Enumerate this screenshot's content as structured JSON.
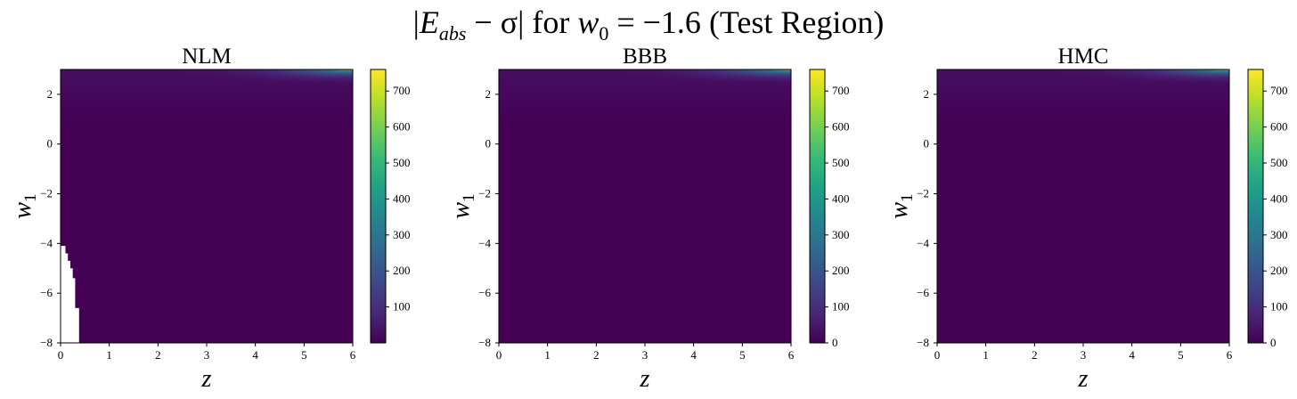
{
  "suptitle": {
    "bar_left": "|",
    "E": "E",
    "sub": "abs",
    "minus_sigma": " − σ",
    "bar_right": "|",
    "for": " for ",
    "w": "w",
    "w_sub": "0",
    "eq": " = −1.6 ",
    "region": "(Test Region)"
  },
  "colormap": "viridis",
  "chart_data": [
    {
      "type": "heatmap",
      "title": "NLM",
      "xlabel": "z",
      "ylabel": "w1",
      "xlim": [
        0,
        6
      ],
      "ylim": [
        -8,
        3
      ],
      "xticks": [
        "0",
        "1",
        "2",
        "3",
        "4",
        "5",
        "6"
      ],
      "yticks": [
        "2",
        "0",
        "−2",
        "−4",
        "−6",
        "−8"
      ],
      "ytick_values": [
        2,
        0,
        -2,
        -4,
        -6,
        -8
      ],
      "colorbar": {
        "min": 0,
        "max": 760,
        "ticks": [
          "100",
          "200",
          "300",
          "400",
          "500",
          "600",
          "700"
        ],
        "tick_values": [
          100,
          200,
          300,
          400,
          500,
          600,
          700
        ]
      },
      "corner_peak": {
        "x": 6,
        "y": 3,
        "value": 760
      },
      "missing_region": [
        [
          0.05,
          -4.1
        ],
        [
          0.1,
          -4.4
        ],
        [
          0.15,
          -4.7
        ],
        [
          0.2,
          -5.0
        ],
        [
          0.25,
          -5.4
        ],
        [
          0.3,
          -6.6
        ],
        [
          0.38,
          -8
        ]
      ]
    },
    {
      "type": "heatmap",
      "title": "BBB",
      "xlabel": "z",
      "ylabel": "w1",
      "xlim": [
        0,
        6
      ],
      "ylim": [
        -8,
        3
      ],
      "xticks": [
        "0",
        "1",
        "2",
        "3",
        "4",
        "5",
        "6"
      ],
      "yticks": [
        "2",
        "0",
        "−2",
        "−4",
        "−6",
        "−8"
      ],
      "ytick_values": [
        2,
        0,
        -2,
        -4,
        -6,
        -8
      ],
      "colorbar": {
        "min": 0,
        "max": 760,
        "ticks": [
          "0",
          "100",
          "200",
          "300",
          "400",
          "500",
          "600",
          "700"
        ],
        "tick_values": [
          0,
          100,
          200,
          300,
          400,
          500,
          600,
          700
        ]
      },
      "corner_peak": {
        "x": 6,
        "y": 3,
        "value": 760
      }
    },
    {
      "type": "heatmap",
      "title": "HMC",
      "xlabel": "z",
      "ylabel": "w1",
      "xlim": [
        0,
        6
      ],
      "ylim": [
        -8,
        3
      ],
      "xticks": [
        "0",
        "1",
        "2",
        "3",
        "4",
        "5",
        "6"
      ],
      "yticks": [
        "2",
        "0",
        "−2",
        "−4",
        "−6",
        "−8"
      ],
      "ytick_values": [
        2,
        0,
        -2,
        -4,
        -6,
        -8
      ],
      "colorbar": {
        "min": 0,
        "max": 760,
        "ticks": [
          "0",
          "100",
          "200",
          "300",
          "400",
          "500",
          "600",
          "700"
        ],
        "tick_values": [
          0,
          100,
          200,
          300,
          400,
          500,
          600,
          700
        ]
      },
      "corner_peak": {
        "x": 6,
        "y": 3,
        "value": 760
      }
    }
  ]
}
